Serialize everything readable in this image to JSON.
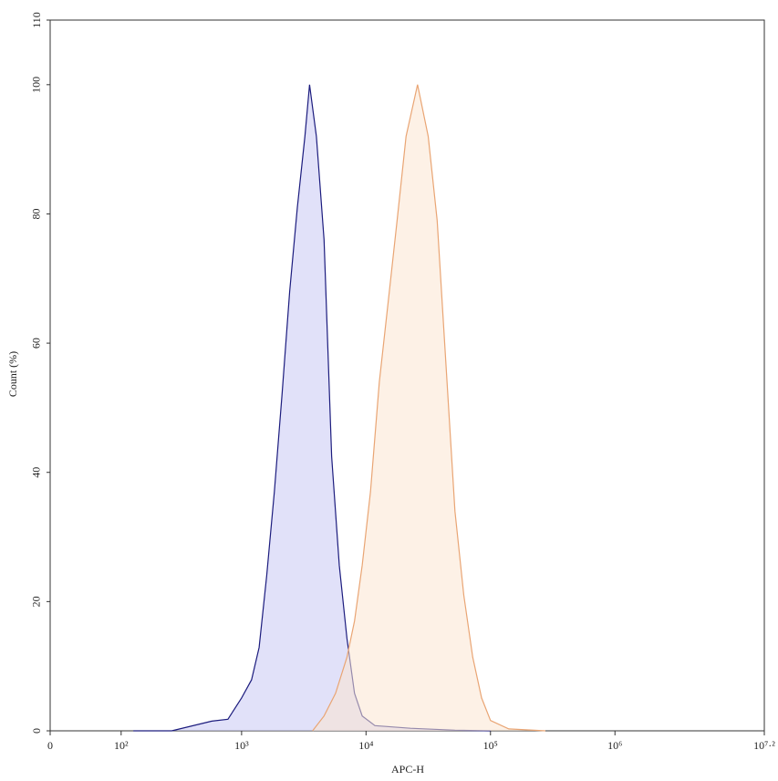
{
  "chart_data": {
    "type": "histogram-overlay",
    "x_label": "APC-H",
    "y_label": "Count (%)",
    "xscale": "biexponential",
    "xlim": [
      0,
      15848932
    ],
    "xticks": [
      0,
      {
        "value": 100,
        "label": "10²"
      },
      {
        "value": 1000,
        "label": "10³"
      },
      {
        "value": 10000,
        "label": "10⁴"
      },
      {
        "value": 100000,
        "label": "10⁵"
      },
      {
        "value": 1000000,
        "label": "10⁶"
      },
      {
        "value": 15848932,
        "label": "10⁷·²"
      }
    ],
    "ylim": [
      0,
      110
    ],
    "yticks": [
      0,
      20,
      40,
      60,
      80,
      100,
      110
    ],
    "series": [
      {
        "color": "#1c1c7e",
        "fill": "#c8c8f4",
        "x": [
          129,
          272,
          575,
          776,
          1000,
          1202,
          1384,
          1593,
          1835,
          2113,
          2436,
          2805,
          3228,
          3516,
          3992,
          4600,
          5297,
          6097,
          7025,
          8091,
          9310,
          11790,
          22760,
          51800,
          100000
        ],
        "values": [
          0,
          0,
          1.5,
          1.8,
          5.1,
          7.9,
          12.9,
          24,
          37,
          52,
          68,
          81,
          92,
          100,
          92,
          76,
          42.5,
          25.6,
          14.3,
          5.8,
          2.3,
          0.8,
          0.4,
          0.1,
          0
        ]
      },
      {
        "color": "#e9a574",
        "fill": "#fce6d2",
        "x": [
          3720,
          4600,
          5690,
          7025,
          8091,
          9310,
          10860,
          12800,
          15090,
          17780,
          20960,
          25950,
          31620,
          37280,
          43940,
          51800,
          61050,
          71970,
          84830,
          100000,
          140300,
          276100
        ],
        "values": [
          0,
          2.3,
          5.8,
          11.4,
          17,
          25.6,
          37,
          54,
          66.5,
          79,
          92,
          100,
          92,
          79,
          56.6,
          34,
          21,
          11.4,
          5.1,
          1.6,
          0.3,
          0
        ]
      }
    ]
  }
}
